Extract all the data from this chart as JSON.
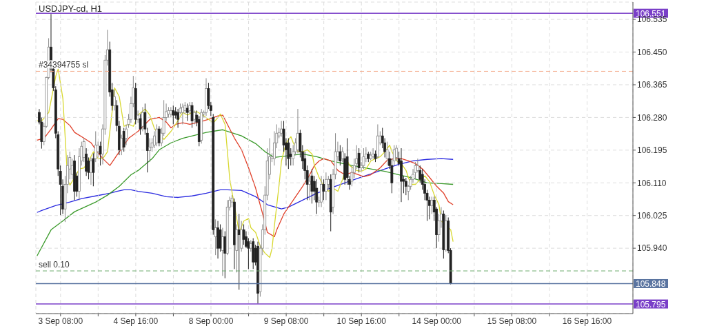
{
  "chart_data": {
    "type": "candlestick",
    "title": "USDJPY-cd, H1",
    "marker": "none",
    "grid": true,
    "categories": [
      null,
      null,
      null,
      null,
      null,
      null,
      null,
      null,
      null,
      null,
      "3 Sep 08:00",
      null,
      null,
      null,
      null,
      null,
      null,
      null,
      null,
      null,
      null,
      null,
      null,
      null,
      null,
      null,
      null,
      null,
      null,
      null,
      null,
      null,
      null,
      null,
      null,
      null,
      null,
      null,
      null,
      null,
      null,
      null,
      "4 Sep 16:00",
      null,
      null,
      null,
      null,
      null,
      null,
      null,
      null,
      null,
      null,
      null,
      null,
      null,
      null,
      null,
      null,
      null,
      null,
      null,
      null,
      null,
      null,
      null,
      null,
      null,
      null,
      null,
      null,
      null,
      null,
      null,
      "8 Sep 00:00",
      null,
      null,
      null,
      null,
      null,
      null,
      null,
      null,
      null,
      null,
      null,
      null,
      null,
      null,
      null,
      null,
      null,
      null,
      null,
      null,
      null,
      null,
      null,
      null,
      null,
      null,
      null,
      null,
      null,
      null,
      null,
      "9 Sep 08:00",
      null,
      null,
      null,
      null,
      null,
      null,
      null,
      null,
      null,
      null,
      null,
      null,
      null,
      null,
      null,
      null,
      null,
      null,
      null,
      null,
      null,
      null,
      null,
      null,
      null,
      null,
      null,
      null,
      null,
      null,
      null,
      "10 Sep 16:00",
      null,
      null,
      null,
      null,
      null,
      null,
      null,
      null,
      null,
      null,
      null,
      null,
      null,
      null,
      null,
      null,
      null,
      null,
      null,
      null,
      null,
      null,
      null,
      null,
      null,
      null,
      null,
      null,
      null,
      null,
      null,
      "14 Sep 00:00",
      null,
      null,
      null,
      null,
      null,
      null,
      null,
      null,
      null,
      null,
      null,
      null,
      null,
      null,
      null,
      null,
      null,
      null,
      null,
      null,
      null,
      null,
      null,
      null,
      null,
      null,
      null,
      null,
      null,
      null,
      null,
      "15 Sep 08:00",
      null,
      null,
      null,
      null,
      null,
      null,
      null,
      null,
      null,
      null,
      null,
      null,
      null,
      null,
      null,
      null,
      null,
      null,
      null,
      null,
      null,
      null,
      null,
      null,
      null,
      null,
      null,
      null,
      null,
      null,
      null,
      "16 Sep 16:00",
      null,
      null,
      null,
      null,
      null,
      null,
      null,
      null,
      null,
      null,
      null,
      null,
      null,
      null,
      null,
      null,
      null,
      null,
      null
    ],
    "ylim": [
      105.77,
      106.58
    ],
    "yticks": [
      {
        "value": 105.94,
        "label": "105.940"
      },
      106.025,
      {
        "value": 106.11,
        "label": "106.110"
      },
      106.195,
      {
        "value": 106.28,
        "label": "106.280"
      },
      106.365,
      {
        "value": 106.45,
        "label": "106.450"
      },
      106.535
    ],
    "ref_lines": [
      {
        "axis": "y",
        "value": 106.551,
        "label": "106.551",
        "color": "#7a3fc8",
        "line_style": "solid"
      },
      {
        "axis": "y",
        "value": 106.4,
        "label": "#34394755 sl",
        "color": "#f4a98a",
        "line_style": "dashed"
      },
      {
        "axis": "y",
        "value": 105.881,
        "label": "sell 0.10",
        "color": "#6aaa6a",
        "line_style": "dashed"
      },
      {
        "axis": "y",
        "value": 105.848,
        "label": "105.848",
        "color": "#5a74a0",
        "line_style": "solid"
      },
      {
        "axis": "y",
        "value": 105.795,
        "label": "105.795",
        "color": "#7a3fc8",
        "line_style": "solid"
      }
    ],
    "ohlc": [
      null,
      [
        106.293,
        106.302,
        106.262,
        106.268
      ],
      [
        106.268,
        106.28,
        106.199,
        106.217
      ],
      [
        106.217,
        106.266,
        106.208,
        106.257
      ],
      [
        106.257,
        106.386,
        106.253,
        106.384
      ],
      [
        106.384,
        106.486,
        106.379,
        106.463
      ],
      [
        106.463,
        106.549,
        106.397,
        106.406
      ],
      [
        106.406,
        106.415,
        106.349,
        106.357
      ],
      [
        106.352,
        106.361,
        106.226,
        106.239
      ],
      [
        106.235,
        106.244,
        106.128,
        106.146
      ],
      [
        106.14,
        106.155,
        106.026,
        106.106
      ],
      [
        106.101,
        106.119,
        106.029,
        106.042
      ],
      [
        106.042,
        106.128,
        106.008,
        106.106
      ],
      [
        106.106,
        106.182,
        106.083,
        106.155
      ],
      [
        106.146,
        106.191,
        106.119,
        106.176
      ],
      [
        106.132,
        106.173,
        106.119,
        106.155
      ],
      [
        106.167,
        106.182,
        106.065,
        106.088
      ],
      [
        106.128,
        106.137,
        106.074,
        106.088
      ],
      [
        106.088,
        106.2,
        106.065,
        106.178
      ],
      [
        106.167,
        106.217,
        106.155,
        106.205
      ],
      [
        106.176,
        106.226,
        106.164,
        106.217
      ],
      [
        106.185,
        106.2,
        106.128,
        106.14
      ],
      [
        106.167,
        106.176,
        106.119,
        106.137
      ],
      [
        106.137,
        106.176,
        106.105,
        106.167
      ],
      [
        106.173,
        106.187,
        106.101,
        106.137
      ],
      [
        106.173,
        106.244,
        106.164,
        106.208
      ],
      [
        106.191,
        106.217,
        106.176,
        106.208
      ],
      [
        106.205,
        106.217,
        106.155,
        106.185
      ],
      [
        106.185,
        106.262,
        106.158,
        106.25
      ],
      [
        106.25,
        106.442,
        106.235,
        106.429
      ],
      [
        106.429,
        106.508,
        106.415,
        106.456
      ],
      [
        106.456,
        106.477,
        106.334,
        106.346
      ],
      [
        106.352,
        106.37,
        106.298,
        106.311
      ],
      [
        106.311,
        106.352,
        106.298,
        106.334
      ],
      [
        106.311,
        106.325,
        106.244,
        106.259
      ],
      [
        106.257,
        106.271,
        106.182,
        106.196
      ],
      [
        106.196,
        106.235,
        106.182,
        106.226
      ],
      [
        106.244,
        106.253,
        106.191,
        106.203
      ],
      [
        106.226,
        106.262,
        106.208,
        106.25
      ],
      [
        106.262,
        106.289,
        106.253,
        106.275
      ],
      [
        106.275,
        106.334,
        106.266,
        106.316
      ],
      [
        106.316,
        106.388,
        106.307,
        106.357
      ],
      [
        106.355,
        106.37,
        106.262,
        106.275
      ],
      [
        106.275,
        106.298,
        106.266,
        106.286
      ],
      [
        106.277,
        106.289,
        106.235,
        106.25
      ],
      [
        106.257,
        106.307,
        106.244,
        106.293
      ],
      [
        106.293,
        106.316,
        106.235,
        106.25
      ],
      [
        106.239,
        106.253,
        106.137,
        106.194
      ],
      [
        106.194,
        106.226,
        106.164,
        106.203
      ],
      [
        106.203,
        106.226,
        106.191,
        106.214
      ],
      [
        106.208,
        106.244,
        106.2,
        106.232
      ],
      [
        106.214,
        106.262,
        106.205,
        106.25
      ],
      [
        106.25,
        106.257,
        106.205,
        106.214
      ],
      [
        106.214,
        106.253,
        106.205,
        106.239
      ],
      [
        106.239,
        106.325,
        106.232,
        106.28
      ],
      [
        106.28,
        106.316,
        106.271,
        106.295
      ],
      [
        106.289,
        106.307,
        106.28,
        106.298
      ],
      [
        106.289,
        106.307,
        106.28,
        106.298
      ],
      [
        106.298,
        106.311,
        106.262,
        106.286
      ],
      [
        106.295,
        106.307,
        106.277,
        106.286
      ],
      [
        106.293,
        106.302,
        106.253,
        106.275
      ],
      [
        106.293,
        106.316,
        106.289,
        106.304
      ],
      [
        106.293,
        106.316,
        106.262,
        106.307
      ],
      [
        106.298,
        106.32,
        106.289,
        106.311
      ],
      [
        106.304,
        106.316,
        106.271,
        106.293
      ],
      [
        106.298,
        106.32,
        106.289,
        106.311
      ],
      [
        106.311,
        106.32,
        106.253,
        106.271
      ],
      [
        106.275,
        106.298,
        106.262,
        106.293
      ],
      [
        106.286,
        106.298,
        106.257,
        106.268
      ],
      [
        106.275,
        106.284,
        106.205,
        106.217
      ],
      [
        106.221,
        106.302,
        106.212,
        106.293
      ],
      [
        106.289,
        106.298,
        106.28,
        106.293
      ],
      [
        106.293,
        106.382,
        106.284,
        106.355
      ],
      [
        106.355,
        106.37,
        106.302,
        106.311
      ],
      [
        106.311,
        106.32,
        106.284,
        106.298
      ],
      [
        106.28,
        106.289,
        105.975,
        105.988
      ],
      [
        105.97,
        106.015,
        105.922,
        105.993
      ],
      [
        105.993,
        106.011,
        105.913,
        105.94
      ],
      [
        105.988,
        106.002,
        105.931,
        105.94
      ],
      [
        105.934,
        105.993,
        105.868,
        105.97
      ],
      [
        105.97,
        105.984,
        105.862,
        105.927
      ],
      [
        105.927,
        106.065,
        105.922,
        106.047
      ],
      [
        106.047,
        106.074,
        106.038,
        106.065
      ],
      [
        106.06,
        106.078,
        106.047,
        106.07
      ],
      [
        106.06,
        106.069,
        105.886,
        105.949
      ],
      [
        105.934,
        106.002,
        105.877,
        105.988
      ],
      [
        105.988,
        106.029,
        105.832,
        105.975
      ],
      [
        105.94,
        106.011,
        105.931,
        105.988
      ],
      [
        105.988,
        106.002,
        105.949,
        105.963
      ],
      [
        105.97,
        105.984,
        105.94,
        105.945
      ],
      [
        105.957,
        105.966,
        105.886,
        105.94
      ],
      [
        105.94,
        105.961,
        105.931,
        105.952
      ],
      [
        105.957,
        105.966,
        105.886,
        105.904
      ],
      [
        105.94,
        105.949,
        105.895,
        105.904
      ],
      [
        105.945,
        105.957,
        105.796,
        105.823
      ],
      [
        105.827,
        105.949,
        105.814,
        105.94
      ],
      [
        105.94,
        106.002,
        105.922,
        105.988
      ],
      [
        105.988,
        106.101,
        105.975,
        106.078
      ],
      [
        106.078,
        106.2,
        106.065,
        106.167
      ],
      [
        106.132,
        106.226,
        106.119,
        106.178
      ],
      [
        106.173,
        106.187,
        106.164,
        106.178
      ],
      [
        106.173,
        106.244,
        106.155,
        106.214
      ],
      [
        106.214,
        106.262,
        106.2,
        106.239
      ],
      [
        106.232,
        106.253,
        106.226,
        106.241
      ],
      [
        106.239,
        106.271,
        106.23,
        106.25
      ],
      [
        106.25,
        106.271,
        106.191,
        106.208
      ],
      [
        106.214,
        106.226,
        106.155,
        106.196
      ],
      [
        106.214,
        106.226,
        106.146,
        106.173
      ],
      [
        106.185,
        106.2,
        106.155,
        106.178
      ],
      [
        106.173,
        106.208,
        106.155,
        106.191
      ],
      [
        106.191,
        106.226,
        106.182,
        106.214
      ],
      [
        106.196,
        106.302,
        106.187,
        106.239
      ],
      [
        106.239,
        106.248,
        106.176,
        106.191
      ],
      [
        106.191,
        106.208,
        106.146,
        106.167
      ],
      [
        106.173,
        106.191,
        106.119,
        106.142
      ],
      [
        106.142,
        106.155,
        106.065,
        106.106
      ],
      [
        106.106,
        106.128,
        106.065,
        106.114
      ],
      [
        106.128,
        106.146,
        106.056,
        106.088
      ],
      [
        106.114,
        106.128,
        106.065,
        106.088
      ],
      [
        106.096,
        106.119,
        106.029,
        106.06
      ],
      [
        106.06,
        106.074,
        106.047,
        106.065
      ],
      [
        106.06,
        106.128,
        106.047,
        106.106
      ],
      [
        106.106,
        106.119,
        106.065,
        106.088
      ],
      [
        106.088,
        106.137,
        106.065,
        106.119
      ],
      [
        106.106,
        106.128,
        106.092,
        106.119
      ],
      [
        106.119,
        106.132,
        105.984,
        106.034
      ],
      [
        106.047,
        106.146,
        106.029,
        106.132
      ],
      [
        106.132,
        106.239,
        106.119,
        106.191
      ],
      [
        106.178,
        106.217,
        106.167,
        106.191
      ],
      [
        106.191,
        106.208,
        106.155,
        106.167
      ],
      [
        106.173,
        106.203,
        106.164,
        106.191
      ],
      [
        106.173,
        106.187,
        106.105,
        106.119
      ],
      [
        106.178,
        106.226,
        106.105,
        106.124
      ],
      [
        106.119,
        106.128,
        106.092,
        106.106
      ],
      [
        106.114,
        106.155,
        106.101,
        106.137
      ],
      [
        106.137,
        106.173,
        106.123,
        106.155
      ],
      [
        106.16,
        106.208,
        106.146,
        106.173
      ],
      [
        106.187,
        106.2,
        106.137,
        106.149
      ],
      [
        106.149,
        106.164,
        106.14,
        106.155
      ],
      [
        106.155,
        106.2,
        106.146,
        106.178
      ],
      [
        106.173,
        106.203,
        106.164,
        106.185
      ],
      [
        106.185,
        106.191,
        106.164,
        106.173
      ],
      [
        106.173,
        106.191,
        106.169,
        106.182
      ],
      [
        106.178,
        106.2,
        106.173,
        106.185
      ],
      [
        106.185,
        106.194,
        106.164,
        106.173
      ],
      [
        106.178,
        106.262,
        106.173,
        106.232
      ],
      [
        106.214,
        106.244,
        106.208,
        106.232
      ],
      [
        106.232,
        106.253,
        106.2,
        106.214
      ],
      [
        106.214,
        106.226,
        106.176,
        106.191
      ],
      [
        106.173,
        106.217,
        106.155,
        106.196
      ],
      [
        106.173,
        106.191,
        106.146,
        106.155
      ],
      [
        106.155,
        106.173,
        106.083,
        106.11
      ],
      [
        106.167,
        106.208,
        106.155,
        106.196
      ],
      [
        106.176,
        106.208,
        106.167,
        106.2
      ],
      [
        106.173,
        106.191,
        106.155,
        106.16
      ],
      [
        106.167,
        106.2,
        106.06,
        106.114
      ],
      [
        106.119,
        106.128,
        106.083,
        106.114
      ],
      [
        106.114,
        106.123,
        106.078,
        106.101
      ],
      [
        106.088,
        106.105,
        106.065,
        106.101
      ],
      [
        106.101,
        106.128,
        106.092,
        106.119
      ],
      [
        106.119,
        106.146,
        106.11,
        106.132
      ],
      [
        106.137,
        106.164,
        106.119,
        106.155
      ],
      [
        106.142,
        106.173,
        106.137,
        106.155
      ],
      [
        106.142,
        106.155,
        106.11,
        106.119
      ],
      [
        106.132,
        106.146,
        106.092,
        106.106
      ],
      [
        106.106,
        106.119,
        106.065,
        106.083
      ],
      [
        106.083,
        106.092,
        106.011,
        106.065
      ],
      [
        106.065,
        106.074,
        106.015,
        106.051
      ],
      [
        106.051,
        106.074,
        106.029,
        106.065
      ],
      [
        106.065,
        106.074,
        106.011,
        106.034
      ],
      [
        106.042,
        106.047,
        105.94,
        105.975
      ],
      [
        105.975,
        106.029,
        105.957,
        106.011
      ],
      [
        106.011,
        106.047,
        105.993,
        106.029
      ],
      [
        106.029,
        106.038,
        105.913,
        105.936
      ],
      [
        105.936,
        106.026,
        105.931,
        106.011
      ],
      [
        106.011,
        106.02,
        105.927,
        105.934
      ],
      [
        105.934,
        105.94,
        105.846,
        105.848
      ],
      null,
      null,
      null,
      null,
      null,
      null,
      null,
      null,
      null,
      null,
      null,
      null,
      null,
      null,
      null,
      null,
      null,
      null,
      null,
      null,
      null,
      null,
      null,
      null,
      null,
      null,
      null,
      null,
      null,
      null,
      null,
      null,
      null,
      null,
      null,
      null,
      null,
      null,
      null,
      null,
      null,
      null,
      null,
      null,
      null,
      null,
      null,
      null,
      null,
      null,
      null,
      null,
      null,
      null,
      null,
      null,
      null,
      null,
      null,
      null,
      null,
      null,
      null,
      null,
      null,
      null,
      null,
      null,
      null,
      null,
      null,
      null,
      null,
      null,
      null,
      null,
      null
    ],
    "series": [
      {
        "type": "line",
        "color": "#2a2ae0",
        "values": [
          106.033,
          null,
          106.038,
          null,
          null,
          null,
          null,
          null,
          106.051,
          null,
          null,
          null,
          null,
          null,
          106.06,
          null,
          null,
          null,
          null,
          106.069,
          null,
          null,
          null,
          null,
          null,
          106.076,
          null,
          null,
          null,
          null,
          null,
          106.083,
          null,
          null,
          106.088,
          null,
          null,
          106.092,
          null,
          null,
          106.092,
          null,
          null,
          106.088,
          null,
          null,
          null,
          null,
          null,
          106.083,
          null,
          null,
          null,
          null,
          null,
          106.074,
          null,
          null,
          null,
          null,
          106.072,
          null,
          null,
          null,
          null,
          null,
          106.076,
          null,
          null,
          null,
          null,
          null,
          106.083,
          null,
          null,
          null,
          null,
          null,
          106.092,
          null,
          null,
          106.092,
          null,
          null,
          null,
          null,
          null,
          106.09,
          null,
          null,
          null,
          null,
          null,
          106.074,
          null,
          null,
          null,
          null,
          106.053,
          null,
          null,
          null,
          null,
          null,
          106.042,
          null,
          null,
          106.047,
          null,
          null,
          null,
          null,
          null,
          106.065,
          null,
          null,
          null,
          null,
          null,
          106.083,
          null,
          null,
          null,
          null,
          null,
          106.097,
          null,
          null,
          null,
          null,
          null,
          106.11,
          null,
          null,
          null,
          null,
          null,
          106.123,
          null,
          null,
          null,
          null,
          106.133,
          null,
          null,
          null,
          null,
          null,
          106.146,
          null,
          null,
          null,
          null,
          null,
          106.158,
          null,
          null,
          null,
          null,
          null,
          106.167,
          null,
          null,
          null,
          null,
          null,
          106.171,
          null,
          null,
          null,
          null,
          null,
          106.173,
          null,
          null,
          null,
          null,
          106.171,
          null,
          null,
          null,
          null,
          null,
          null,
          null,
          null,
          null,
          null,
          null,
          null,
          null,
          null,
          null,
          null,
          null,
          null,
          null,
          null,
          null,
          null,
          null,
          null,
          null,
          null,
          null,
          null,
          null,
          null,
          null,
          null,
          null,
          null,
          null,
          null,
          null,
          null,
          null,
          null,
          null,
          null,
          null,
          null,
          null,
          null,
          null,
          null,
          null,
          null,
          null,
          null,
          null,
          null,
          null,
          null,
          null,
          null,
          null,
          null,
          null,
          null,
          null,
          null,
          null,
          null,
          null,
          null,
          null,
          null,
          null,
          null,
          null,
          null,
          null,
          null
        ]
      },
      {
        "type": "line",
        "color": "#3a9a2a",
        "values": [
          105.92,
          null,
          null,
          null,
          null,
          null,
          105.988,
          null,
          null,
          null,
          null,
          106.011,
          null,
          null,
          null,
          null,
          106.035,
          null,
          null,
          null,
          null,
          null,
          null,
          null,
          null,
          106.06,
          null,
          null,
          null,
          null,
          106.078,
          null,
          null,
          null,
          null,
          106.101,
          null,
          null,
          null,
          null,
          106.131,
          null,
          null,
          106.142,
          null,
          null,
          null,
          null,
          null,
          106.173,
          null,
          null,
          106.196,
          null,
          null,
          null,
          null,
          106.214,
          null,
          null,
          null,
          null,
          106.226,
          null,
          null,
          null,
          null,
          null,
          null,
          null,
          null,
          null,
          106.241,
          null,
          null,
          null,
          null,
          null,
          null,
          106.248,
          null,
          null,
          null,
          null,
          null,
          null,
          null,
          106.232,
          null,
          null,
          null,
          null,
          null,
          106.212,
          null,
          null,
          null,
          106.191,
          null,
          null,
          null,
          106.176,
          null,
          null,
          null,
          null,
          null,
          null,
          null,
          null,
          null,
          null,
          null,
          106.185,
          null,
          null,
          null,
          null,
          null,
          106.178,
          null,
          null,
          null,
          null,
          null,
          106.167,
          null,
          null,
          null,
          null,
          null,
          null,
          null,
          null,
          106.155,
          null,
          null,
          null,
          null,
          null,
          null,
          null,
          106.146,
          null,
          null,
          null,
          null,
          null,
          106.14,
          null,
          null,
          null,
          null,
          null,
          106.131,
          null,
          null,
          null,
          null,
          null,
          106.122,
          null,
          null,
          null,
          null,
          null,
          106.11,
          null,
          null,
          null,
          null,
          null,
          106.108,
          null,
          null,
          null,
          null,
          106.106,
          null,
          null,
          null,
          null,
          null,
          null,
          null,
          null,
          null,
          null,
          null,
          null,
          null,
          null,
          null,
          null,
          null,
          null,
          null,
          null,
          null,
          null,
          null,
          null,
          null,
          null,
          null,
          null,
          null,
          null,
          null,
          null,
          null,
          null,
          null,
          null,
          null,
          null,
          null,
          null,
          null,
          null,
          null,
          null,
          null,
          null,
          null,
          null,
          null,
          null,
          null,
          null,
          null,
          null,
          null,
          null,
          null,
          null,
          null,
          null,
          null,
          null,
          null,
          null,
          null,
          null,
          null,
          null,
          null,
          null,
          null,
          null,
          null,
          null,
          null,
          null
        ]
      },
      {
        "type": "line",
        "color": "#e0402a",
        "values": [
          106.221,
          null,
          null,
          106.226,
          null,
          null,
          106.25,
          null,
          null,
          106.277,
          null,
          106.275,
          null,
          null,
          106.259,
          null,
          106.241,
          null,
          null,
          null,
          106.226,
          null,
          null,
          106.214,
          null,
          106.196,
          null,
          null,
          106.173,
          null,
          null,
          106.155,
          null,
          null,
          106.182,
          null,
          null,
          null,
          null,
          106.226,
          null,
          null,
          null,
          106.244,
          null,
          null,
          null,
          null,
          106.275,
          null,
          null,
          null,
          106.28,
          null,
          null,
          106.268,
          null,
          106.253,
          null,
          106.262,
          null,
          null,
          106.266,
          null,
          null,
          106.262,
          null,
          null,
          null,
          106.268,
          null,
          null,
          null,
          106.275,
          null,
          null,
          null,
          106.284,
          null,
          106.286,
          null,
          106.262,
          null,
          null,
          106.226,
          null,
          null,
          106.196,
          null,
          null,
          106.149,
          null,
          null,
          106.096,
          null,
          null,
          106.029,
          null,
          105.981,
          null,
          null,
          105.97,
          105.988,
          null,
          null,
          106.029,
          null,
          null,
          null,
          106.065,
          null,
          null,
          null,
          106.101,
          null,
          null,
          106.131,
          null,
          106.155,
          null,
          106.167,
          null,
          106.173,
          null,
          null,
          106.167,
          null,
          null,
          106.142,
          null,
          null,
          106.131,
          null,
          null,
          106.137,
          null,
          null,
          null,
          null,
          106.126,
          null,
          null,
          106.131,
          null,
          null,
          null,
          106.149,
          null,
          null,
          106.169,
          null,
          null,
          106.173,
          null,
          null,
          106.173,
          null,
          null,
          106.167,
          null,
          null,
          106.16,
          null,
          null,
          106.146,
          null,
          null,
          106.124,
          null,
          null,
          106.101,
          null,
          null,
          106.083,
          null,
          106.061,
          null,
          106.053,
          null,
          null,
          null,
          null,
          null,
          null,
          null,
          null,
          null,
          null,
          null,
          null,
          null,
          null,
          null,
          null,
          null,
          null,
          null,
          null,
          null,
          null,
          null,
          null,
          null,
          null,
          null,
          null,
          null,
          null,
          null,
          null,
          null,
          null,
          null,
          null,
          null,
          null,
          null,
          null,
          null,
          null,
          null,
          null,
          null,
          null,
          null,
          null,
          null,
          null,
          null,
          null,
          null,
          null,
          null,
          null,
          null,
          null,
          null,
          null,
          null,
          null,
          null,
          null,
          null,
          null,
          null,
          null,
          null,
          null,
          null,
          null,
          null,
          null,
          null,
          null
        ]
      },
      {
        "type": "line",
        "color": "#d8d830",
        "values": [
          106.271,
          null,
          106.271,
          null,
          null,
          106.293,
          null,
          null,
          106.388,
          106.406,
          null,
          106.329,
          106.226,
          106.119,
          106.104,
          null,
          106.124,
          null,
          106.146,
          null,
          106.149,
          null,
          106.167,
          null,
          106.191,
          null,
          106.173,
          null,
          106.173,
          null,
          106.191,
          null,
          106.298,
          106.357,
          null,
          106.334,
          null,
          106.257,
          null,
          106.262,
          null,
          106.257,
          null,
          106.286,
          null,
          null,
          106.302,
          null,
          106.286,
          null,
          106.25,
          null,
          null,
          null,
          106.223,
          null,
          null,
          106.244,
          null,
          106.262,
          null,
          null,
          106.293,
          null,
          106.286,
          null,
          106.293,
          null,
          106.295,
          null,
          null,
          106.284,
          null,
          106.275,
          null,
          106.266,
          null,
          106.28,
          106.289,
          null,
          106.262,
          null,
          106.119,
          null,
          null,
          null,
          105.981,
          null,
          106.011,
          null,
          106.017,
          105.993,
          null,
          105.981,
          null,
          105.945,
          null,
          105.927,
          null,
          105.916,
          105.94,
          105.999,
          null,
          106.106,
          106.167,
          null,
          106.214,
          null,
          106.23,
          106.214,
          null,
          106.191,
          null,
          106.191,
          null,
          106.196,
          null,
          106.185,
          106.155,
          null,
          106.124,
          null,
          106.101,
          null,
          106.088,
          null,
          106.096,
          null,
          106.088,
          null,
          106.119,
          null,
          106.167,
          106.155,
          null,
          null,
          106.142,
          null,
          106.14,
          null,
          106.146,
          null,
          106.167,
          null,
          106.173,
          null,
          106.178,
          null,
          106.191,
          null,
          106.208,
          106.191,
          null,
          106.167,
          null,
          106.16,
          null,
          106.142,
          null,
          106.106,
          null,
          106.106,
          null,
          106.119,
          null,
          106.128,
          null,
          106.113,
          null,
          106.078,
          null,
          106.053,
          106.011,
          null,
          null,
          null,
          105.988,
          105.957,
          null,
          null,
          null,
          null,
          null,
          null,
          null,
          null,
          null,
          null,
          null,
          null,
          null,
          null,
          null,
          null,
          null,
          null,
          null,
          null,
          null,
          null,
          null,
          null,
          null,
          null,
          null,
          null,
          null,
          null,
          null,
          null,
          null,
          null,
          null,
          null,
          null,
          null,
          null,
          null,
          null,
          null,
          null,
          null,
          null,
          null,
          null,
          null,
          null,
          null,
          null,
          null,
          null,
          null,
          null,
          null,
          null,
          null,
          null,
          null,
          null,
          null,
          null,
          null,
          null,
          null,
          null,
          null,
          null,
          null,
          null,
          null,
          null,
          null,
          null,
          null
        ]
      }
    ]
  }
}
